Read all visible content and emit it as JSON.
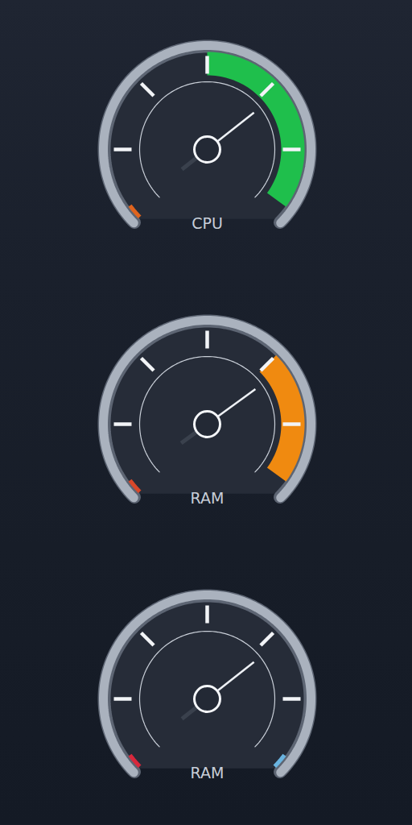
{
  "chart_data": [
    {
      "type": "gauge",
      "title": "CPU",
      "value": 83,
      "ylim": [
        0,
        120
      ],
      "yticks": [
        20,
        40,
        60,
        80,
        100
      ],
      "tick_labels": false,
      "bands": [
        {
          "from": 0,
          "to": 4,
          "color": "#e0641e"
        },
        {
          "from": 60,
          "to": 116,
          "color": "#1fbf4c"
        }
      ]
    },
    {
      "type": "gauge",
      "title": "RAM",
      "value": 84,
      "ylim": [
        0,
        120
      ],
      "yticks": [
        20,
        40,
        60,
        80,
        100
      ],
      "tick_labels": false,
      "bands": [
        {
          "from": 0,
          "to": 4,
          "color": "#d9482a"
        },
        {
          "from": 80,
          "to": 116,
          "color": "#f08a10"
        }
      ]
    },
    {
      "type": "gauge",
      "title": "RAM",
      "value": 83,
      "ylim": [
        0,
        120
      ],
      "yticks": [
        20,
        40,
        60,
        80,
        100
      ],
      "tick_labels": false,
      "bands": [
        {
          "from": 0,
          "to": 4,
          "color": "#d8283c"
        },
        {
          "from": 116,
          "to": 120,
          "color": "#6ab4e0"
        }
      ]
    }
  ]
}
